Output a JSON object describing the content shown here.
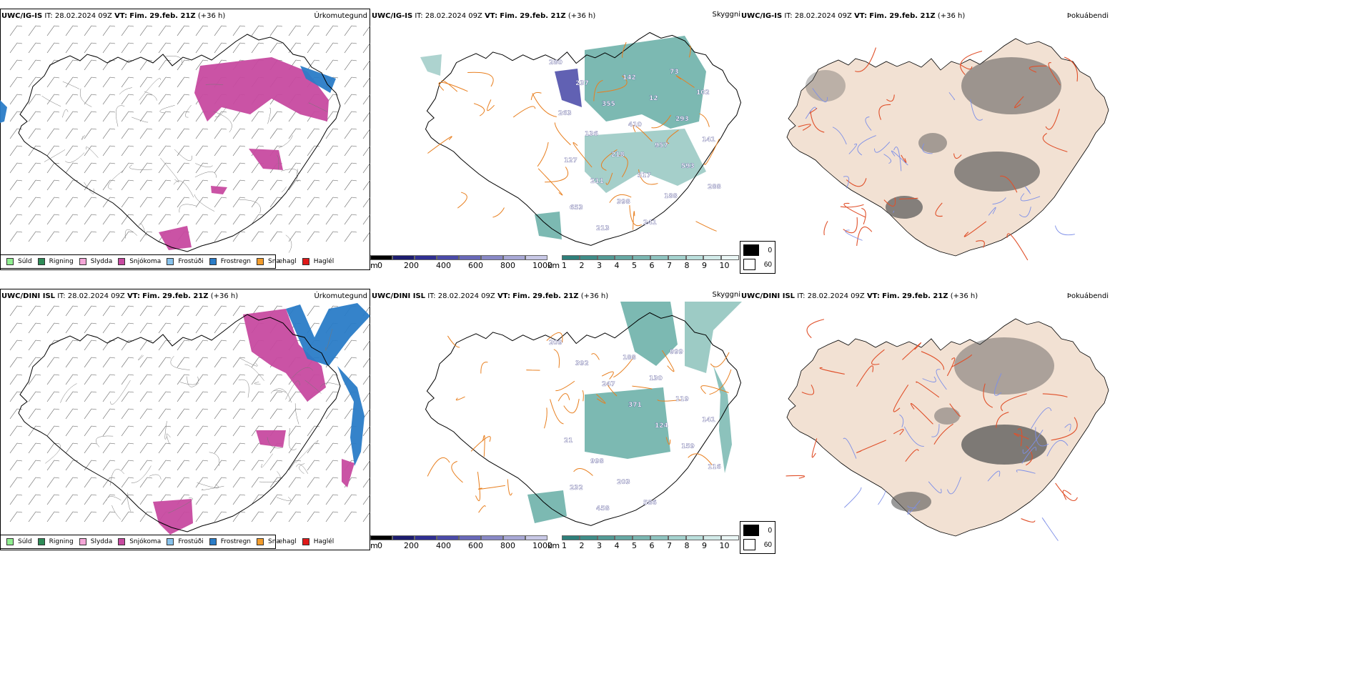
{
  "rows": [
    {
      "panel1": {
        "model": "UWC/IG-IS",
        "it_label": "IT:",
        "it": "28.02.2024 09Z",
        "vt_label": "VT:",
        "vt": "Fim. 29.feb. 21Z",
        "lead": "(+36 h)",
        "title": "Úrkomutegund"
      },
      "panel2": {
        "model": "UWC/IG-IS",
        "it_label": "IT:",
        "it": "28.02.2024 09Z",
        "vt_label": "VT:",
        "vt": "Fim. 29.feb. 21Z",
        "lead": "(+36 h)",
        "title": "Skyggni"
      },
      "panel3": {
        "model": "UWC/IG-IS",
        "it_label": "IT:",
        "it": "28.02.2024 09Z",
        "vt_label": "VT:",
        "vt": "Fim. 29.feb. 21Z",
        "lead": "(+36 h)",
        "title": "Þokuábendi"
      }
    },
    {
      "panel1": {
        "model": "UWC/DINI ISL",
        "it_label": "IT:",
        "it": "28.02.2024 09Z",
        "vt_label": "VT:",
        "vt": "Fim. 29.feb. 21Z",
        "lead": "(+36 h)",
        "title": "Úrkomutegund"
      },
      "panel2": {
        "model": "UWC/DINI ISL",
        "it_label": "IT:",
        "it": "28.02.2024 09Z",
        "vt_label": "VT:",
        "vt": "Fim. 29.feb. 21Z",
        "lead": "(+36 h)",
        "title": "Skyggni"
      },
      "panel3": {
        "model": "UWC/DINI ISL",
        "it_label": "IT:",
        "it": "28.02.2024 09Z",
        "vt_label": "VT:",
        "vt": "Fim. 29.feb. 21Z",
        "lead": "(+36 h)",
        "title": "Þokuábendi"
      }
    }
  ],
  "precip_legend": [
    {
      "label": "Súld",
      "color": "#90ee90"
    },
    {
      "label": "Rigning",
      "color": "#2e8b57"
    },
    {
      "label": "Slydda",
      "color": "#f4a6d7"
    },
    {
      "label": "Snjókoma",
      "color": "#c74aa0"
    },
    {
      "label": "Frostúði",
      "color": "#87c2ec"
    },
    {
      "label": "Frostregn",
      "color": "#2a7cc7"
    },
    {
      "label": "Snæhagl",
      "color": "#f39c2b"
    },
    {
      "label": "Haglél",
      "color": "#e01a1a"
    }
  ],
  "visibility_scale": {
    "unit_m": "m",
    "m_ticks": [
      "0",
      "200",
      "400",
      "600",
      "800",
      "1000"
    ],
    "unit_km": "km",
    "km_ticks": [
      "1",
      "2",
      "3",
      "4",
      "5",
      "6",
      "7",
      "8",
      "9",
      "10"
    ],
    "m_colors": [
      "#000000",
      "#1c1c6e",
      "#2f2f92",
      "#4a4aa8",
      "#6868b8",
      "#8888c6",
      "#a8a8d6",
      "#c8c8e6"
    ],
    "km_colors": [
      "#2e7f7a",
      "#3f8d88",
      "#529a95",
      "#66a8a3",
      "#7ab6b1",
      "#8fc4c0",
      "#a4d2ce",
      "#badfdc",
      "#d2ebe9",
      "#eaf6f5"
    ]
  },
  "fog_legend": [
    {
      "label": "0",
      "color": "#000000"
    },
    {
      "label": "60",
      "color": "#ffffff"
    }
  ],
  "row1_labels": [
    "280",
    "237",
    "355",
    "410",
    "957",
    "593",
    "288",
    "653",
    "213",
    "142",
    "12",
    "293",
    "141",
    "127",
    "211",
    "398",
    "241",
    "73",
    "102",
    "263",
    "136",
    "218",
    "517",
    "188"
  ],
  "row2_labels": [
    "209",
    "392",
    "247",
    "371",
    "124",
    "159",
    "116",
    "232",
    "458",
    "188",
    "130",
    "119",
    "141",
    "21",
    "998",
    "203",
    "586",
    "999"
  ],
  "colors": {
    "coast": "#000000",
    "roads": "#e87f1f",
    "fog_land": "#f2e1d3",
    "fog_roads": "#e0502a",
    "fog_rivers": "#7d8fe8",
    "snow": "#c74aa0",
    "frz_rain": "#2a7cc7",
    "teal": "#5ba89f",
    "purple": "#3a3aa0"
  }
}
